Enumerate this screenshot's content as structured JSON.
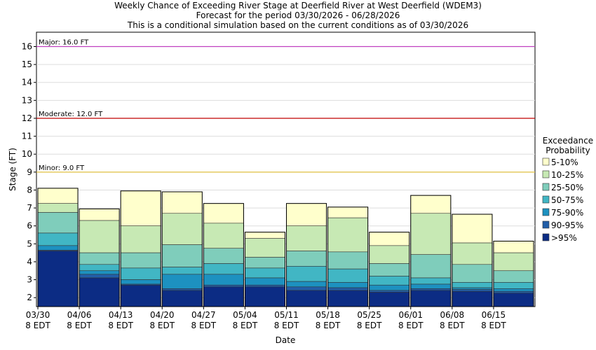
{
  "chart_data": {
    "type": "bar",
    "stacked": true,
    "title_lines": [
      "Weekly Chance of Exceeding River Stage at Deerfield River at West Deerfield (WDEM3)",
      "Forecast for the period 03/30/2026 - 06/28/2026",
      "This is a conditional simulation based on the current conditions as of 03/30/2026"
    ],
    "xlabel": "Date",
    "ylabel": "Stage (FT)",
    "ylim": [
      1.5,
      16.8
    ],
    "yticks": [
      2,
      3,
      4,
      5,
      6,
      7,
      8,
      9,
      10,
      11,
      12,
      13,
      14,
      15,
      16
    ],
    "xtick_labels": [
      [
        "03/30",
        "8 EDT"
      ],
      [
        "04/06",
        "8 EDT"
      ],
      [
        "04/13",
        "8 EDT"
      ],
      [
        "04/20",
        "8 EDT"
      ],
      [
        "04/27",
        "8 EDT"
      ],
      [
        "05/04",
        "8 EDT"
      ],
      [
        "05/11",
        "8 EDT"
      ],
      [
        "05/18",
        "8 EDT"
      ],
      [
        "05/25",
        "8 EDT"
      ],
      [
        "06/01",
        "8 EDT"
      ],
      [
        "06/08",
        "8 EDT"
      ],
      [
        "06/15",
        "8 EDT"
      ]
    ],
    "thresholds": [
      {
        "label": "Major: 16.0 FT",
        "value": 16.0,
        "color": "#c040c0"
      },
      {
        "label": "Moderate: 12.0 FT",
        "value": 12.0,
        "color": "#c00000"
      },
      {
        "label": "Minor: 9.0 FT",
        "value": 9.0,
        "color": "#e0c040"
      }
    ],
    "legend": {
      "title_lines": [
        "Exceedance",
        "Probability"
      ],
      "position": "right",
      "items": [
        "5-10%",
        "10-25%",
        "25-50%",
        "50-75%",
        "75-90%",
        "90-95%",
        ">95%"
      ]
    },
    "colors": [
      "#ffffcc",
      "#c7e9b4",
      "#7fcdbb",
      "#41b6c4",
      "#1d91c0",
      "#225ea8",
      "#0c2c84"
    ],
    "weeks": [
      {
        "levels": [
          8.1,
          7.25,
          6.75,
          5.6,
          4.9,
          4.65,
          4.6
        ]
      },
      {
        "levels": [
          6.95,
          6.3,
          4.5,
          3.85,
          3.5,
          3.3,
          3.1
        ]
      },
      {
        "levels": [
          7.95,
          6.0,
          4.5,
          3.65,
          3.0,
          2.75,
          2.7
        ]
      },
      {
        "levels": [
          7.9,
          6.7,
          4.95,
          3.7,
          3.3,
          2.5,
          2.4
        ]
      },
      {
        "levels": [
          7.25,
          6.15,
          4.75,
          3.9,
          3.3,
          2.7,
          2.6
        ]
      },
      {
        "levels": [
          5.65,
          5.3,
          4.25,
          3.65,
          3.1,
          2.7,
          2.6
        ]
      },
      {
        "levels": [
          7.25,
          6.0,
          4.6,
          3.75,
          2.9,
          2.6,
          2.4
        ]
      },
      {
        "levels": [
          7.05,
          6.45,
          4.55,
          3.6,
          2.85,
          2.55,
          2.4
        ]
      },
      {
        "levels": [
          5.65,
          4.9,
          3.9,
          3.2,
          2.7,
          2.4,
          2.3
        ]
      },
      {
        "levels": [
          7.7,
          6.7,
          4.4,
          3.1,
          2.75,
          2.5,
          2.4
        ]
      },
      {
        "levels": [
          6.65,
          5.05,
          3.85,
          2.85,
          2.55,
          2.45,
          2.35
        ]
      },
      {
        "levels": [
          5.15,
          4.5,
          3.5,
          2.85,
          2.5,
          2.35,
          2.25
        ]
      }
    ]
  }
}
